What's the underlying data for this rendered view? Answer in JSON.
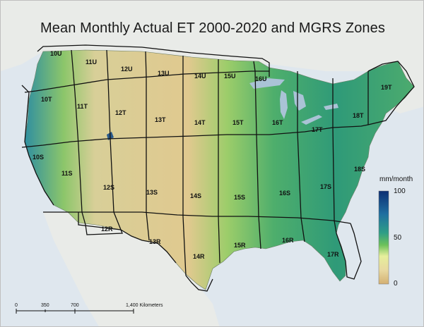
{
  "title": "Mean Monthly Actual ET 2000-2020 and MGRS Zones",
  "zones": [
    "10U",
    "11U",
    "12U",
    "13U",
    "14U",
    "15U",
    "16U",
    "19T",
    "10T",
    "11T",
    "12T",
    "13T",
    "14T",
    "15T",
    "16T",
    "17T",
    "18T",
    "10S",
    "11S",
    "12S",
    "13S",
    "14S",
    "15S",
    "16S",
    "17S",
    "18S",
    "12R",
    "13R",
    "14R",
    "15R",
    "16R",
    "17R"
  ],
  "legend": {
    "unit": "mm/month",
    "max": "100",
    "mid": "50",
    "min": "0",
    "colors": [
      "#0b2e73",
      "#1f6fa0",
      "#2e9e86",
      "#6cc15a",
      "#cfe78a",
      "#e8d9a0",
      "#d4b072"
    ]
  },
  "scale_bar": {
    "ticks": [
      "0",
      "350",
      "700",
      "1,400 Kilometers"
    ]
  }
}
